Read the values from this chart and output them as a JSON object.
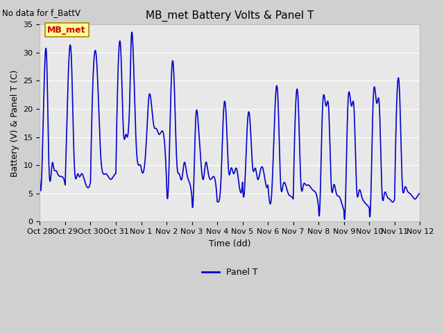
{
  "title": "MB_met Battery Volts & Panel T",
  "no_data_text": "No data for f_BattV",
  "ylabel": "Battery (V) & Panel T (C)",
  "xlabel": "Time (dd)",
  "legend_label": "Panel T",
  "legend_color": "#0000cc",
  "ylim": [
    0,
    35
  ],
  "yticks": [
    0,
    5,
    10,
    15,
    20,
    25,
    30,
    35
  ],
  "x_tick_labels": [
    "Oct 28",
    "Oct 29",
    "Oct 30",
    "Oct 31",
    "Nov 1",
    "Nov 2",
    "Nov 3",
    "Nov 4",
    "Nov 5",
    "Nov 6",
    "Nov 7",
    "Nov 8",
    "Nov 9",
    "Nov 10",
    "Nov 11",
    "Nov 12"
  ],
  "line_color": "#0000cc",
  "line_width": 1.2,
  "plot_bg_color": "#e8e8e8",
  "grid_color": "#ffffff",
  "annotation_box_color": "#ffff99",
  "annotation_text": "MB_met",
  "annotation_text_color": "#cc0000",
  "title_fontsize": 11,
  "label_fontsize": 9,
  "tick_fontsize": 8
}
